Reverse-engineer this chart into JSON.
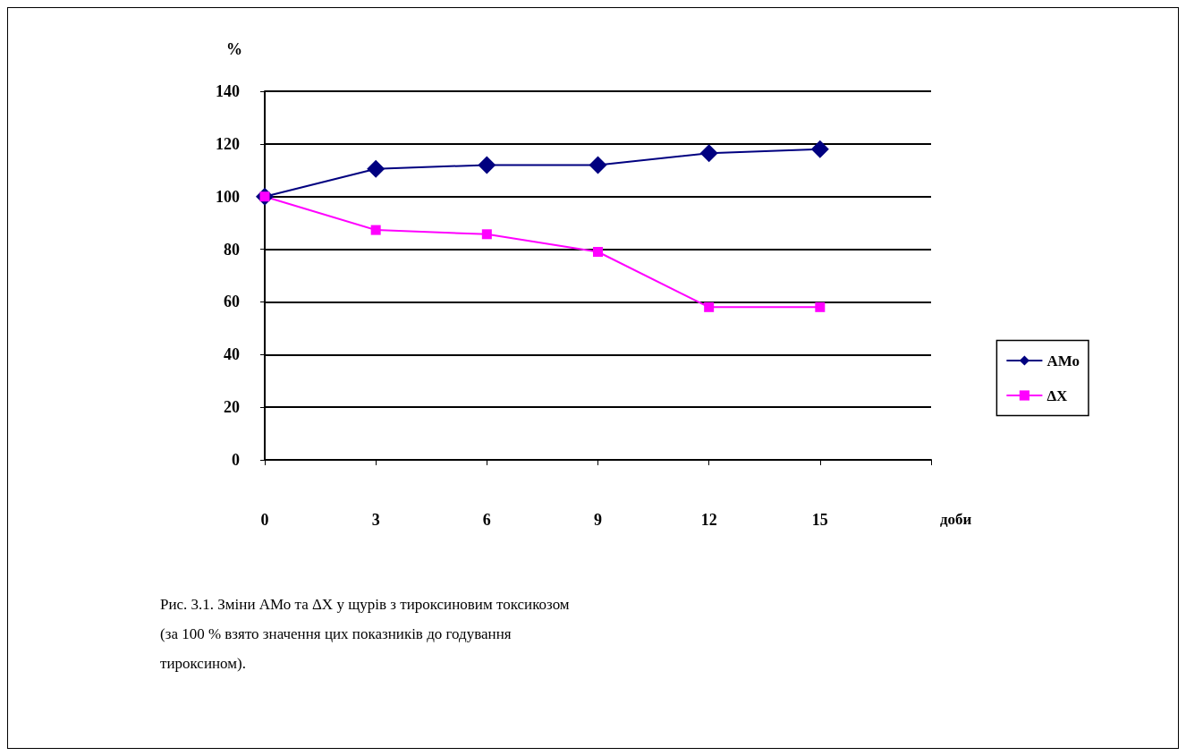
{
  "chart_data": {
    "type": "line",
    "ylabel": "%",
    "xlabel": "доби",
    "categories": [
      "0",
      "3",
      "6",
      "9",
      "12",
      "15",
      null
    ],
    "series": [
      {
        "name": "АМо",
        "color": "#000080",
        "marker": "diamond",
        "values": [
          100,
          110.5,
          112,
          112,
          116.5,
          118,
          null
        ]
      },
      {
        "name": "ΔX",
        "color": "#ff00ff",
        "marker": "square",
        "values": [
          100,
          87.3,
          85.7,
          79,
          58,
          58,
          null
        ]
      }
    ],
    "ylim": [
      0,
      140
    ],
    "yticks": [
      0,
      20,
      40,
      60,
      80,
      100,
      120,
      140
    ],
    "grid": "y",
    "legend": "right",
    "annotations": [
      "Рис. 3.1. Зміни АМо та ΔX у щурів з тироксиновим токсикозом\n(за 100 % взято значення цих показників до годування\nтироксином)."
    ]
  }
}
